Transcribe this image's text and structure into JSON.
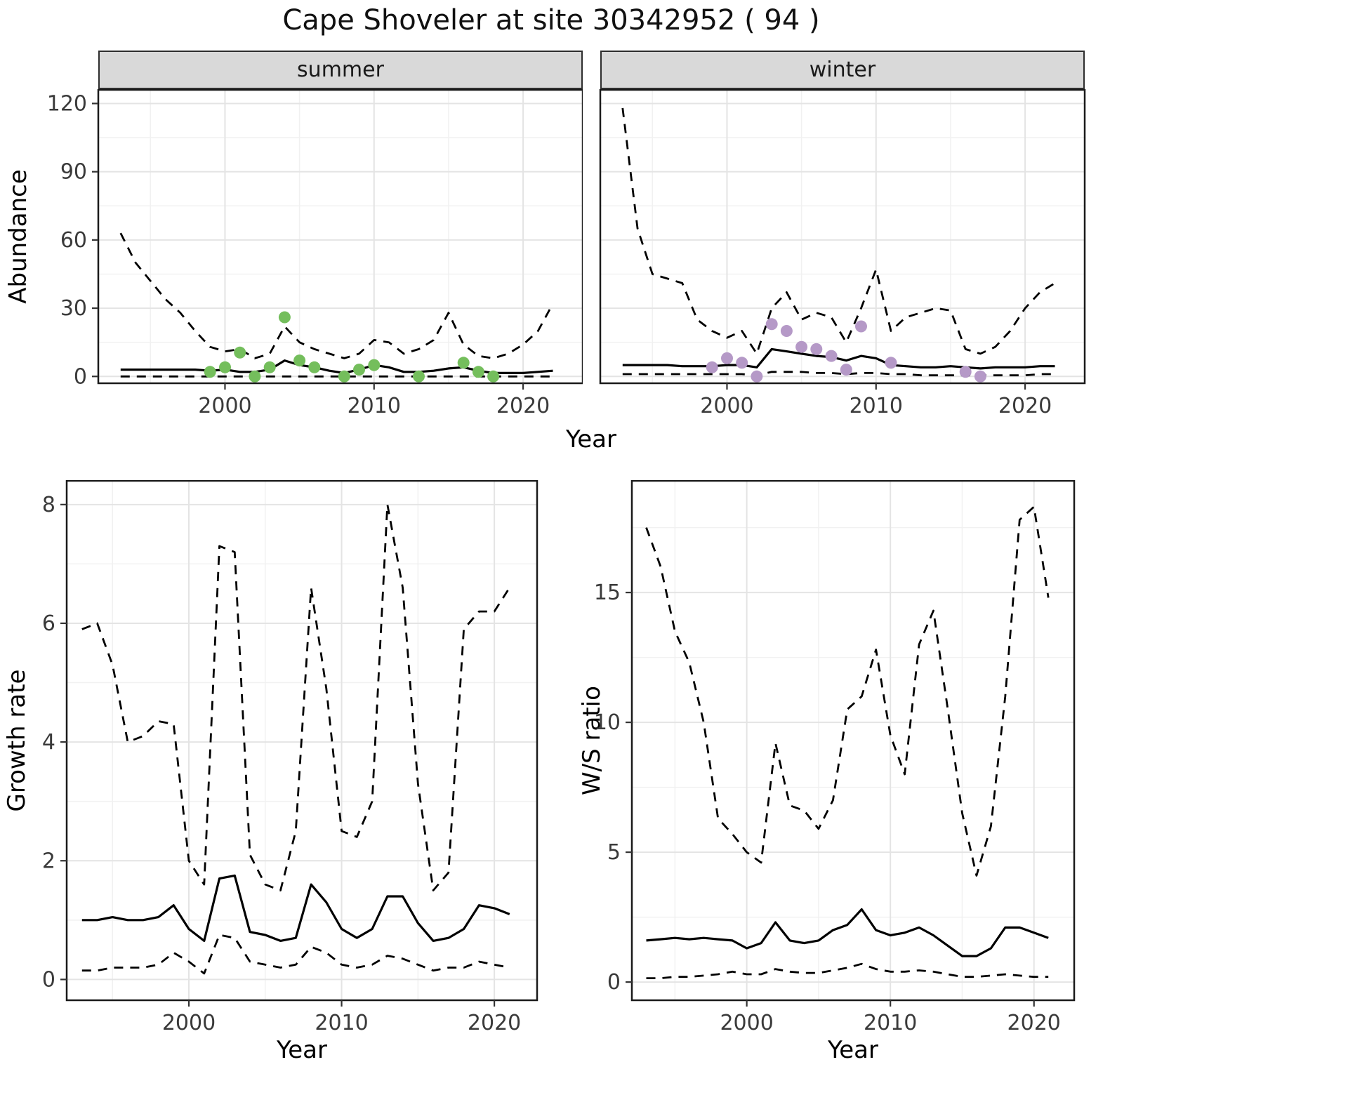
{
  "title": "Cape Shoveler at site 30342952 ( 94 )",
  "facets": [
    {
      "label": "summer"
    },
    {
      "label": "winter"
    }
  ],
  "axis_labels": {
    "abundance": "Abundance",
    "year": "Year",
    "growth": "Growth rate",
    "ws": "W/S ratio"
  },
  "colors": {
    "summer_points": "#74BE5C",
    "winter_points": "#B599C7",
    "line": "#000000",
    "panel_border": "#1A1A1A",
    "tick": "#333333",
    "axis_text": "#3A3A3A",
    "grid_major": "#E4E4E4",
    "grid_minor": "#F1F1F1",
    "strip_bg": "#D9D9D9"
  },
  "chart_data": [
    {
      "id": "abundance_summer",
      "type": "line",
      "title": "Abundance - summer facet",
      "xlabel": "Year",
      "ylabel": "Abundance",
      "x": [
        1993,
        1994,
        1995,
        1996,
        1997,
        1998,
        1999,
        2000,
        2001,
        2002,
        2003,
        2004,
        2005,
        2006,
        2007,
        2008,
        2009,
        2010,
        2011,
        2012,
        2013,
        2014,
        2015,
        2016,
        2017,
        2018,
        2019,
        2020,
        2021,
        2022
      ],
      "series": [
        {
          "name": "fitted",
          "style": "solid",
          "values": [
            3,
            3,
            3,
            3,
            3,
            3,
            2.5,
            3,
            2,
            2,
            3,
            7,
            5,
            4,
            2.5,
            1.5,
            3,
            5,
            4,
            2,
            2,
            2.5,
            3.5,
            4,
            2.5,
            1.5,
            1.5,
            1.5,
            2,
            2.5
          ]
        },
        {
          "name": "upper_ci",
          "style": "dashed",
          "values": [
            63,
            50,
            42,
            34,
            28,
            20,
            13,
            11,
            12,
            8,
            10,
            22,
            15,
            12,
            10,
            8,
            10,
            16,
            15,
            10,
            12,
            16,
            28,
            14,
            9,
            8,
            10,
            14,
            20,
            32
          ]
        },
        {
          "name": "lower_ci",
          "style": "dashed",
          "values": [
            0,
            0,
            0,
            0,
            0,
            0,
            0,
            0,
            0,
            0,
            0,
            0,
            0,
            0,
            0,
            0,
            0,
            0,
            0,
            0,
            0,
            0,
            0,
            0,
            0,
            0,
            0,
            0,
            0,
            0
          ]
        }
      ],
      "points": {
        "name": "observed_counts",
        "color_key": "summer_points",
        "x": [
          1999,
          2000,
          2001,
          2002,
          2003,
          2004,
          2005,
          2006,
          2008,
          2009,
          2010,
          2013,
          2016,
          2017,
          2018
        ],
        "y": [
          2,
          4,
          10.5,
          0,
          4,
          26,
          7,
          4,
          0,
          3,
          5,
          0,
          6,
          2,
          0
        ]
      },
      "xlim": [
        1991.5,
        2024
      ],
      "ylim": [
        -3,
        126
      ],
      "xticks": [
        2000,
        2010,
        2020
      ],
      "xminor": [
        1995,
        2005,
        2015
      ],
      "yticks": [
        0,
        30,
        60,
        90,
        120
      ],
      "yminor": [
        15,
        45,
        75,
        105
      ],
      "layout": {
        "ml": 80,
        "mt": 1,
        "pw": 690,
        "ph": 418,
        "yLabels": true,
        "xLabels": true
      }
    },
    {
      "id": "abundance_winter",
      "type": "line",
      "title": "Abundance - winter facet",
      "xlabel": "Year",
      "ylabel": "Abundance",
      "x": [
        1993,
        1994,
        1995,
        1996,
        1997,
        1998,
        1999,
        2000,
        2001,
        2002,
        2003,
        2004,
        2005,
        2006,
        2007,
        2008,
        2009,
        2010,
        2011,
        2012,
        2013,
        2014,
        2015,
        2016,
        2017,
        2018,
        2019,
        2020,
        2021,
        2022
      ],
      "series": [
        {
          "name": "fitted",
          "style": "solid",
          "values": [
            5,
            5,
            5,
            5,
            4.5,
            4.5,
            4.5,
            5,
            5,
            4,
            12,
            11,
            10,
            9,
            8.5,
            7,
            9,
            8,
            5,
            4.5,
            4,
            4,
            4.5,
            4,
            3.5,
            4,
            4,
            4,
            4.5,
            4.5
          ]
        },
        {
          "name": "upper_ci",
          "style": "dashed",
          "values": [
            118,
            65,
            45,
            43,
            41,
            25,
            20,
            17,
            20,
            10,
            30,
            37,
            25,
            28,
            26,
            15,
            30,
            47,
            20,
            26,
            28,
            30,
            29,
            12,
            10,
            13,
            20,
            30,
            37,
            41
          ]
        },
        {
          "name": "lower_ci",
          "style": "dashed",
          "values": [
            1,
            1,
            1,
            1,
            1,
            1,
            1,
            1,
            1,
            0.5,
            2,
            2,
            2,
            1.5,
            1.5,
            1,
            1.5,
            1.5,
            1,
            1,
            0.5,
            0.5,
            0.5,
            0.5,
            0.5,
            0.5,
            0.5,
            0.5,
            1,
            1
          ]
        }
      ],
      "points": {
        "name": "observed_counts",
        "color_key": "winter_points",
        "x": [
          1999,
          2000,
          2001,
          2002,
          2003,
          2004,
          2005,
          2006,
          2007,
          2008,
          2009,
          2011,
          2016,
          2017
        ],
        "y": [
          4,
          8,
          6,
          0,
          23,
          20,
          13,
          12,
          9,
          3,
          22,
          6,
          2,
          0
        ]
      },
      "xlim": [
        1991.5,
        2024
      ],
      "ylim": [
        -3,
        126
      ],
      "xticks": [
        2000,
        2010,
        2020
      ],
      "xminor": [
        1995,
        2005,
        2015
      ],
      "yticks": [
        0,
        30,
        60,
        90,
        120
      ],
      "yminor": [
        15,
        45,
        75,
        105
      ],
      "layout": {
        "ml": 2,
        "mt": 1,
        "pw": 690,
        "ph": 418,
        "yLabels": false,
        "xLabels": true
      }
    },
    {
      "id": "growth_rate",
      "type": "line",
      "title": "Growth rate",
      "xlabel": "Year",
      "ylabel": "Growth rate",
      "x": [
        1993,
        1994,
        1995,
        1996,
        1997,
        1998,
        1999,
        2000,
        2001,
        2002,
        2003,
        2004,
        2005,
        2006,
        2007,
        2008,
        2009,
        2010,
        2011,
        2012,
        2013,
        2014,
        2015,
        2016,
        2017,
        2018,
        2019,
        2020,
        2021
      ],
      "series": [
        {
          "name": "fitted",
          "style": "solid",
          "values": [
            1.0,
            1.0,
            1.05,
            1.0,
            1.0,
            1.05,
            1.25,
            0.85,
            0.65,
            1.7,
            1.75,
            0.8,
            0.75,
            0.65,
            0.7,
            1.6,
            1.3,
            0.85,
            0.7,
            0.85,
            1.4,
            1.4,
            0.95,
            0.65,
            0.7,
            0.85,
            1.25,
            1.2,
            1.1
          ]
        },
        {
          "name": "upper_ci",
          "style": "dashed",
          "values": [
            5.9,
            6.0,
            5.3,
            4.0,
            4.1,
            4.35,
            4.3,
            2.0,
            1.6,
            7.3,
            7.2,
            2.1,
            1.6,
            1.5,
            2.5,
            6.6,
            4.9,
            2.5,
            2.4,
            3.0,
            8.0,
            6.6,
            3.3,
            1.5,
            1.8,
            5.9,
            6.2,
            6.2,
            6.6
          ]
        },
        {
          "name": "lower_ci",
          "style": "dashed",
          "values": [
            0.15,
            0.15,
            0.2,
            0.2,
            0.2,
            0.25,
            0.45,
            0.3,
            0.1,
            0.75,
            0.7,
            0.3,
            0.25,
            0.2,
            0.25,
            0.55,
            0.45,
            0.25,
            0.2,
            0.25,
            0.4,
            0.35,
            0.25,
            0.15,
            0.2,
            0.2,
            0.3,
            0.25,
            0.2
          ]
        }
      ],
      "points": null,
      "xlim": [
        1992,
        2022.8
      ],
      "ylim": [
        -0.35,
        8.4
      ],
      "xticks": [
        2000,
        2010,
        2020
      ],
      "xminor": [
        1995,
        2005,
        2015
      ],
      "yticks": [
        0,
        2,
        4,
        6,
        8
      ],
      "yminor": [
        1,
        3,
        5,
        7
      ],
      "layout": {
        "ml": 75,
        "mt": 1,
        "pw": 670,
        "ph": 740,
        "yLabels": true,
        "xLabels": true
      }
    },
    {
      "id": "ws_ratio",
      "type": "line",
      "title": "W/S ratio",
      "xlabel": "Year",
      "ylabel": "W/S ratio",
      "x": [
        1993,
        1994,
        1995,
        1996,
        1997,
        1998,
        1999,
        2000,
        2001,
        2002,
        2003,
        2004,
        2005,
        2006,
        2007,
        2008,
        2009,
        2010,
        2011,
        2012,
        2013,
        2014,
        2015,
        2016,
        2017,
        2018,
        2019,
        2020,
        2021
      ],
      "series": [
        {
          "name": "fitted",
          "style": "solid",
          "values": [
            1.6,
            1.65,
            1.7,
            1.65,
            1.7,
            1.65,
            1.6,
            1.3,
            1.5,
            2.3,
            1.6,
            1.5,
            1.6,
            2.0,
            2.2,
            2.8,
            2.0,
            1.8,
            1.9,
            2.1,
            1.8,
            1.4,
            1.0,
            1.0,
            1.3,
            2.1,
            2.1,
            1.9,
            1.7
          ]
        },
        {
          "name": "upper_ci",
          "style": "dashed",
          "values": [
            17.5,
            16.0,
            13.5,
            12.3,
            10.0,
            6.3,
            5.7,
            5.0,
            4.6,
            9.2,
            6.8,
            6.6,
            5.9,
            7.0,
            10.5,
            11.0,
            12.8,
            9.5,
            8.0,
            13.0,
            14.3,
            10.5,
            6.5,
            4.1,
            6.0,
            11.0,
            17.8,
            18.3,
            14.8
          ]
        },
        {
          "name": "lower_ci",
          "style": "dashed",
          "values": [
            0.15,
            0.15,
            0.2,
            0.2,
            0.25,
            0.3,
            0.4,
            0.3,
            0.3,
            0.5,
            0.4,
            0.35,
            0.35,
            0.45,
            0.55,
            0.7,
            0.5,
            0.4,
            0.4,
            0.45,
            0.4,
            0.3,
            0.2,
            0.2,
            0.25,
            0.3,
            0.25,
            0.2,
            0.2
          ]
        }
      ],
      "points": null,
      "xlim": [
        1992,
        2022.8
      ],
      "ylim": [
        -0.7,
        19.3
      ],
      "xticks": [
        2000,
        2010,
        2020
      ],
      "xminor": [
        1995,
        2005,
        2015
      ],
      "yticks": [
        0,
        5,
        10,
        15
      ],
      "yminor": [
        2.5,
        7.5,
        12.5,
        17.5
      ],
      "layout": {
        "ml": 75,
        "mt": 1,
        "pw": 630,
        "ph": 740,
        "yLabels": true,
        "xLabels": true
      }
    }
  ]
}
